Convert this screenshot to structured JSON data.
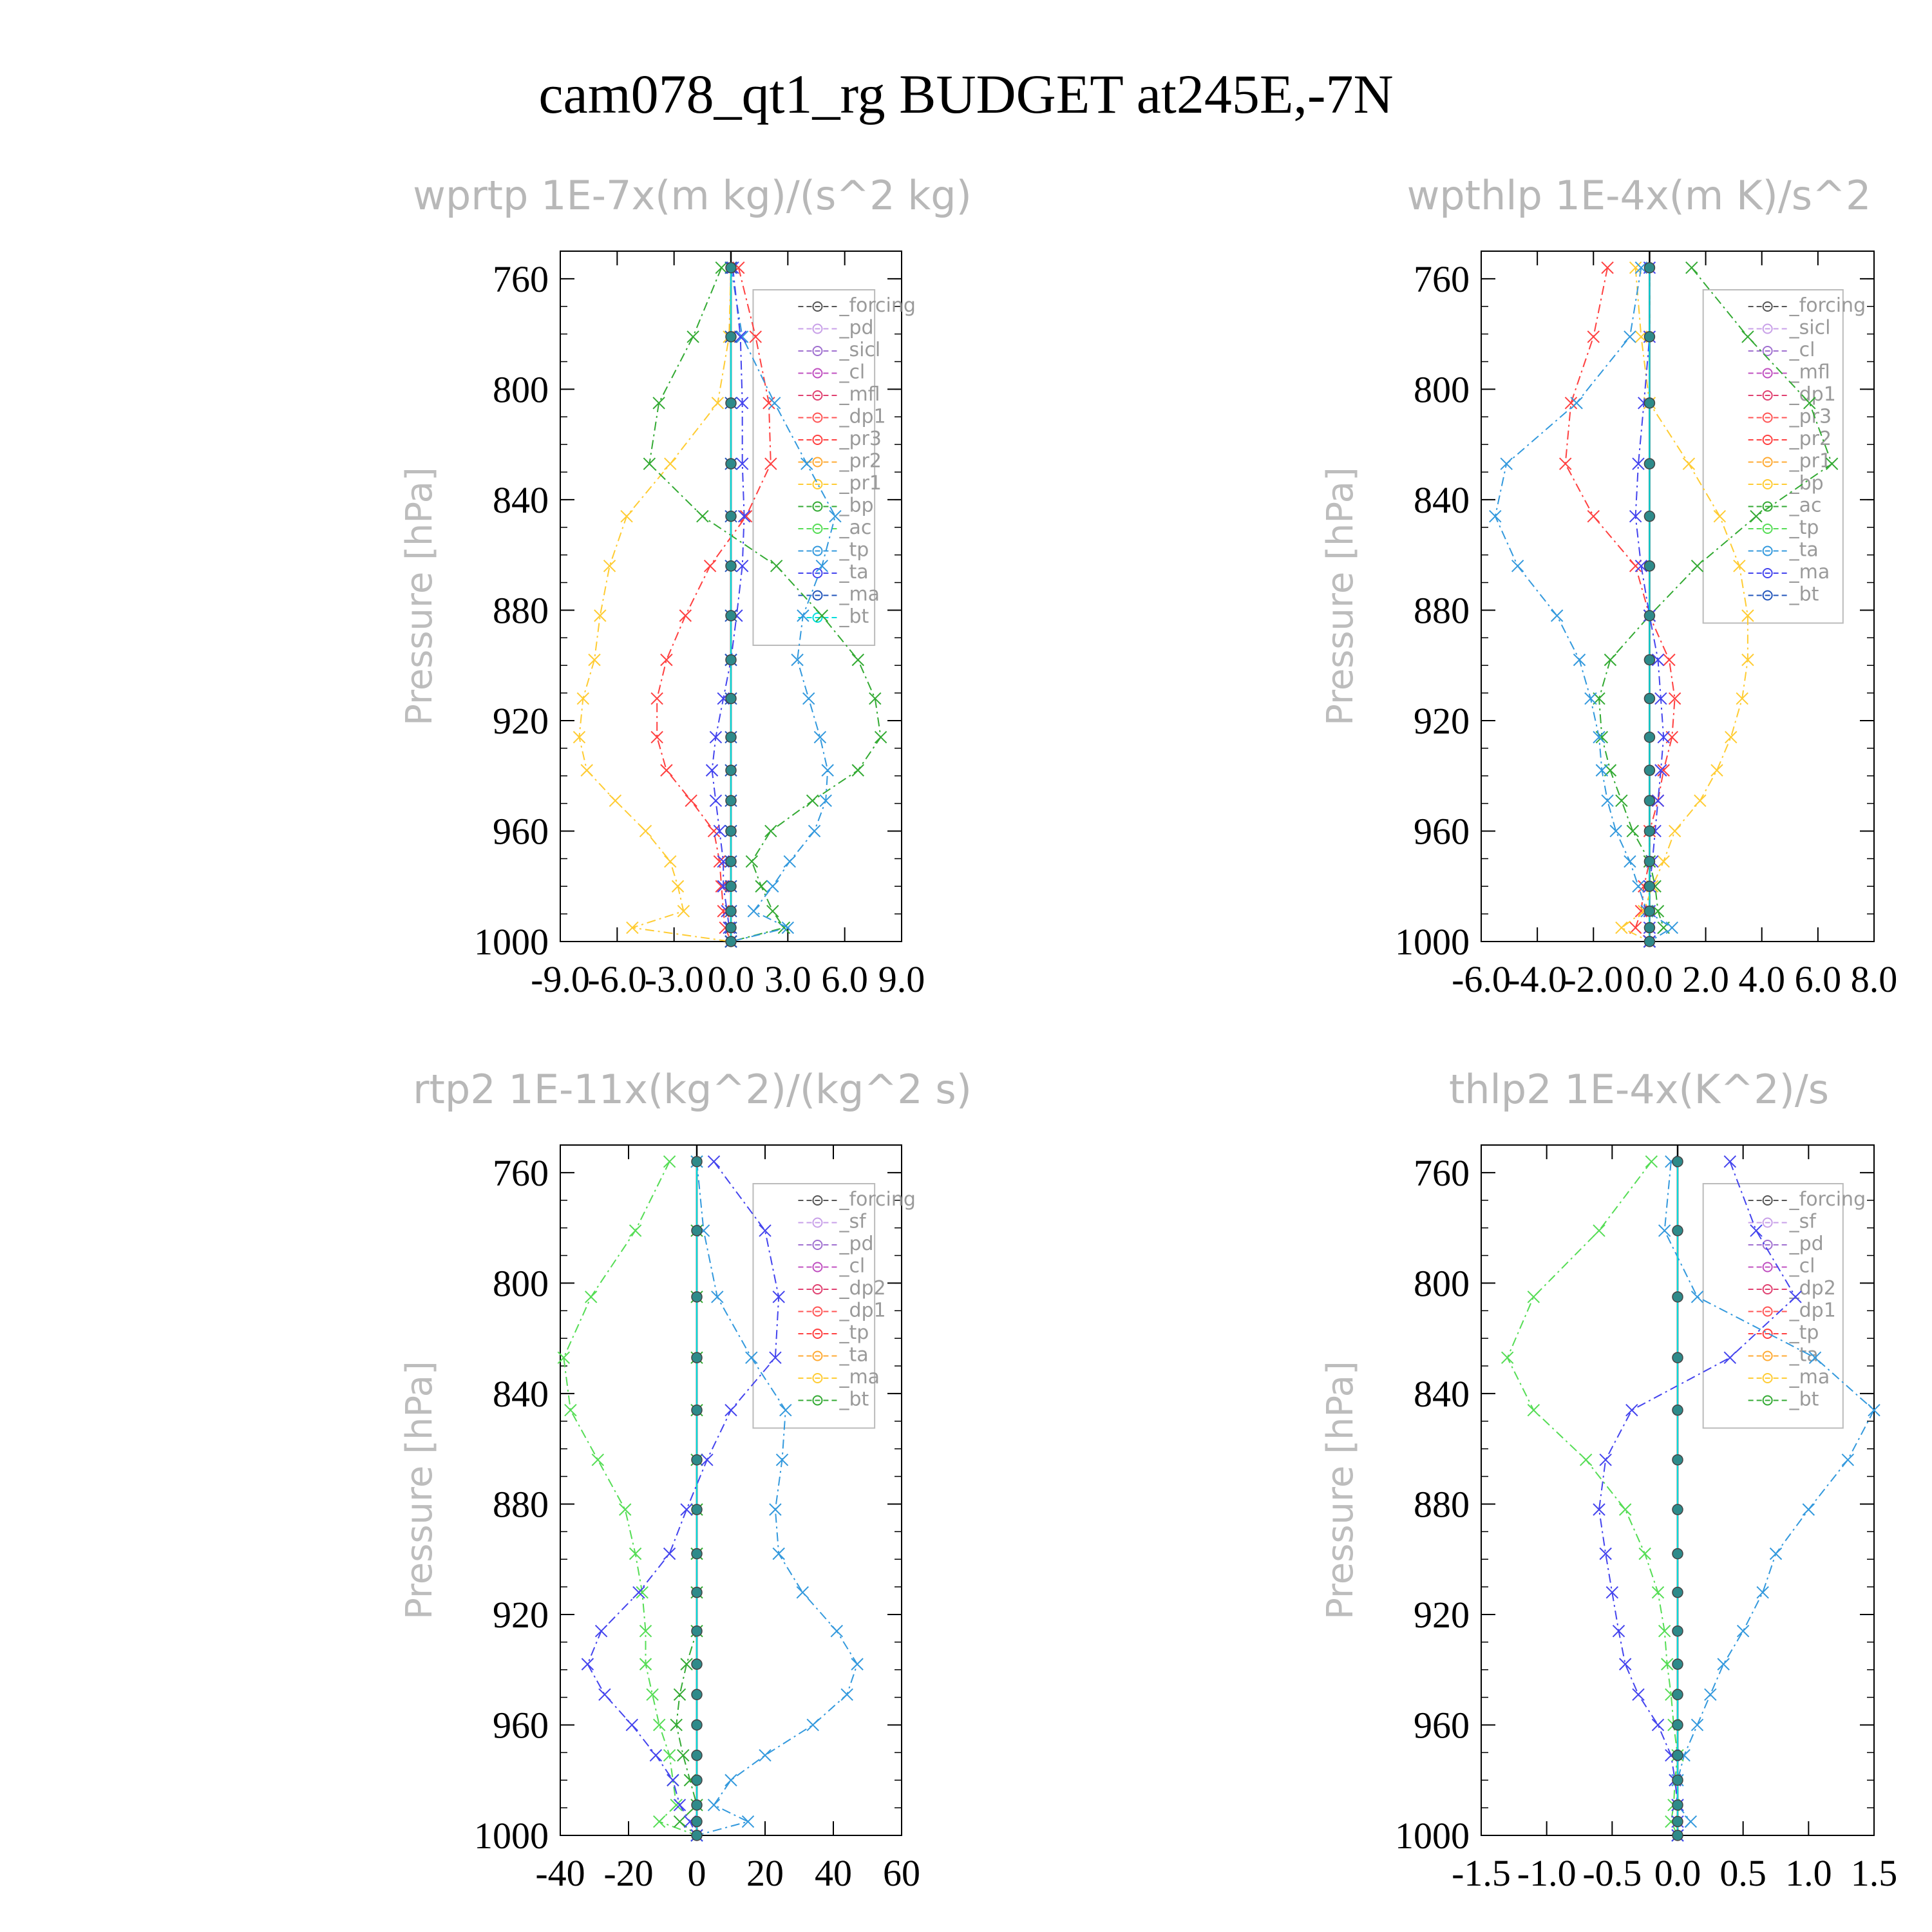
{
  "title": "cam078_qt1_rg  BUDGET at245E,-7N",
  "chart_data": [
    {
      "type": "line",
      "title": "wprtp  1E-7x(m kg)/(s^2 kg)",
      "ylabel": "Pressure [hPa]",
      "xlim": [
        -9,
        9
      ],
      "xticks": [
        "-9.0",
        "-6.0",
        "-3.0",
        "0.0",
        "3.0",
        "6.0",
        "9.0"
      ],
      "ylim": [
        750,
        1000
      ],
      "yticks": [
        "760",
        "800",
        "840",
        "880",
        "920",
        "960",
        "1000"
      ],
      "levels": [
        756,
        781,
        805,
        827,
        846,
        864,
        882,
        898,
        912,
        926,
        938,
        949,
        960,
        971,
        980,
        989,
        995,
        1000
      ],
      "legend": [
        "_forcing",
        "_pd",
        "_sicl",
        "_cl",
        "_mfl",
        "_dp1",
        "_pr3",
        "_pr2",
        "_pr1",
        "_bp",
        "_ac",
        "_tp",
        "_ta",
        "_ma",
        "_bt"
      ],
      "series": [
        {
          "name": "_pr3",
          "color": "#ff4040",
          "values": [
            0.4,
            1.3,
            2.0,
            2.1,
            0.8,
            -1.1,
            -2.4,
            -3.4,
            -3.9,
            -3.9,
            -3.4,
            -2.1,
            -0.9,
            -0.6,
            -0.5,
            -0.4,
            -0.3,
            0
          ]
        },
        {
          "name": "_pr1",
          "color": "#ffcc33",
          "values": [
            0.0,
            -0.1,
            -0.7,
            -3.2,
            -5.5,
            -6.4,
            -6.9,
            -7.2,
            -7.8,
            -8.0,
            -7.6,
            -6.1,
            -4.5,
            -3.2,
            -2.8,
            -2.5,
            -5.2,
            0
          ]
        },
        {
          "name": "_bp",
          "color": "#33aa33",
          "values": [
            -0.5,
            -2.0,
            -3.8,
            -4.3,
            -1.5,
            2.4,
            4.8,
            6.7,
            7.6,
            7.9,
            6.7,
            4.3,
            2.1,
            1.1,
            1.6,
            2.2,
            2.8,
            0
          ]
        },
        {
          "name": "_tp",
          "color": "#3399dd",
          "values": [
            0.0,
            0.6,
            2.3,
            4.0,
            5.5,
            4.8,
            3.8,
            3.5,
            4.1,
            4.7,
            5.1,
            5.0,
            4.4,
            3.1,
            2.2,
            1.2,
            3.0,
            0
          ]
        },
        {
          "name": "_ta",
          "color": "#4444ee",
          "values": [
            0.1,
            0.5,
            0.6,
            0.6,
            0.7,
            0.6,
            0.3,
            0.0,
            -0.4,
            -0.8,
            -1.0,
            -0.8,
            -0.6,
            -0.4,
            -0.4,
            -0.2,
            -0.1,
            0
          ]
        },
        {
          "name": "_ma",
          "color": "#2255bb",
          "values": [
            0.0,
            0.0,
            0.0,
            0.0,
            0.0,
            0.0,
            0.0,
            0.0,
            0.0,
            0.0,
            0.0,
            0.0,
            0.0,
            0.0,
            0.0,
            0.0,
            0.0,
            0
          ]
        },
        {
          "name": "_bt",
          "color": "#00dddd",
          "values": [
            0.0,
            0.0,
            0.0,
            0.0,
            0.0,
            0.0,
            0.0,
            0.0,
            0.0,
            0.0,
            0.0,
            0.0,
            0.0,
            0.0,
            0.0,
            0.0,
            0.0,
            0
          ]
        }
      ]
    },
    {
      "type": "line",
      "title": "wpthlp  1E-4x(m K)/s^2",
      "ylabel": "Pressure [hPa]",
      "xlim": [
        -6,
        8
      ],
      "xticks": [
        "-6.0",
        "-4.0",
        "-2.0",
        "0.0",
        "2.0",
        "4.0",
        "6.0",
        "8.0"
      ],
      "ylim": [
        750,
        1000
      ],
      "yticks": [
        "760",
        "800",
        "840",
        "880",
        "920",
        "960",
        "1000"
      ],
      "levels": [
        756,
        781,
        805,
        827,
        846,
        864,
        882,
        898,
        912,
        926,
        938,
        949,
        960,
        971,
        980,
        989,
        995,
        1000
      ],
      "legend": [
        "_forcing",
        "_sicl",
        "_cl",
        "_mfl",
        "_dp1",
        "_pr3",
        "_pr2",
        "_pr1",
        "_bp",
        "_ac",
        "_tp",
        "_ta",
        "_ma",
        "_bt"
      ],
      "series": [
        {
          "name": "_pr3",
          "color": "#ff4040",
          "values": [
            -1.5,
            -2.0,
            -2.8,
            -3.0,
            -2.0,
            -0.5,
            0.0,
            0.7,
            0.9,
            0.8,
            0.5,
            0.3,
            0.0,
            0.0,
            -0.2,
            -0.3,
            -0.5,
            0
          ]
        },
        {
          "name": "_pr1",
          "color": "#ffcc33",
          "values": [
            -0.5,
            -0.3,
            0.0,
            1.4,
            2.5,
            3.2,
            3.5,
            3.5,
            3.3,
            2.9,
            2.4,
            1.8,
            0.9,
            0.5,
            0.1,
            -0.2,
            -1.0,
            0
          ]
        },
        {
          "name": "_bp",
          "color": "#33aa33",
          "values": [
            1.5,
            3.5,
            5.7,
            6.5,
            3.8,
            1.7,
            0.0,
            -1.4,
            -1.8,
            -1.7,
            -1.4,
            -1.0,
            -0.6,
            0.0,
            0.2,
            0.3,
            0.5,
            0
          ]
        },
        {
          "name": "_tp",
          "color": "#3399dd",
          "values": [
            -0.3,
            -0.7,
            -2.6,
            -5.1,
            -5.5,
            -4.7,
            -3.3,
            -2.5,
            -2.1,
            -1.8,
            -1.7,
            -1.5,
            -1.2,
            -0.7,
            -0.4,
            -0.1,
            0.8,
            0
          ]
        },
        {
          "name": "_ta",
          "color": "#4444ee",
          "values": [
            0.0,
            0.0,
            -0.2,
            -0.4,
            -0.5,
            -0.3,
            0.0,
            0.3,
            0.4,
            0.5,
            0.4,
            0.3,
            0.2,
            0.1,
            0.0,
            0.0,
            0.0,
            0
          ]
        },
        {
          "name": "_bt",
          "color": "#00dddd",
          "values": [
            0.0,
            0.0,
            0.0,
            0.0,
            0.0,
            0.0,
            0.0,
            0.0,
            0.0,
            0.0,
            0.0,
            0.0,
            0.0,
            0.0,
            0.0,
            0.0,
            0.0,
            0
          ]
        }
      ]
    },
    {
      "type": "line",
      "title": "rtp2  1E-11x(kg^2)/(kg^2 s)",
      "ylabel": "Pressure [hPa]",
      "xlim": [
        -40,
        60
      ],
      "xticks": [
        "-40",
        "-20",
        "0",
        "20",
        "40",
        "60"
      ],
      "ylim": [
        750,
        1000
      ],
      "yticks": [
        "760",
        "800",
        "840",
        "880",
        "920",
        "960",
        "1000"
      ],
      "levels": [
        756,
        781,
        805,
        827,
        846,
        864,
        882,
        898,
        912,
        926,
        938,
        949,
        960,
        971,
        980,
        989,
        995,
        1000
      ],
      "legend": [
        "_forcing",
        "_sf",
        "_pd",
        "_cl",
        "_dp2",
        "_dp1",
        "_tp",
        "_ta",
        "_ma",
        "_bt"
      ],
      "series": [
        {
          "name": "_dp1",
          "color": "#55dd55",
          "values": [
            -8,
            -18,
            -31,
            -39,
            -37,
            -29,
            -21,
            -18,
            -16,
            -15,
            -15,
            -13,
            -11,
            -8,
            -7,
            -6,
            -11,
            0
          ]
        },
        {
          "name": "_dp2",
          "color": "#33aa33",
          "values": [
            0,
            0,
            0,
            0,
            0,
            0,
            0,
            0,
            0,
            0,
            -3,
            -5,
            -6,
            -4,
            -2,
            0,
            -5,
            0
          ]
        },
        {
          "name": "_tp",
          "color": "#3399dd",
          "values": [
            0,
            2,
            6,
            16,
            26,
            25,
            23,
            24,
            31,
            41,
            47,
            44,
            34,
            20,
            10,
            5,
            15,
            0
          ]
        },
        {
          "name": "_ta",
          "color": "#4444ee",
          "values": [
            5,
            20,
            24,
            23,
            10,
            3,
            -3,
            -8,
            -17,
            -28,
            -32,
            -27,
            -19,
            -12,
            -7,
            -5,
            -2,
            0
          ]
        },
        {
          "name": "_bt",
          "color": "#00dddd",
          "values": [
            0,
            0,
            0,
            0,
            0,
            0,
            0,
            0,
            0,
            0,
            0,
            0,
            0,
            0,
            0,
            0,
            0,
            0
          ]
        }
      ]
    },
    {
      "type": "line",
      "title": "thlp2  1E-4x(K^2)/s",
      "ylabel": "Pressure [hPa]",
      "xlim": [
        -1.5,
        1.5
      ],
      "xticks": [
        "-1.5",
        "-1.0",
        "-0.5",
        "0.0",
        "0.5",
        "1.0",
        "1.5"
      ],
      "ylim": [
        750,
        1000
      ],
      "yticks": [
        "760",
        "800",
        "840",
        "880",
        "920",
        "960",
        "1000"
      ],
      "levels": [
        756,
        781,
        805,
        827,
        846,
        864,
        882,
        898,
        912,
        926,
        938,
        949,
        960,
        971,
        980,
        989,
        995,
        1000
      ],
      "legend": [
        "_forcing",
        "_sf",
        "_pd",
        "_cl",
        "_dp2",
        "_dp1",
        "_tp",
        "_ta",
        "_ma",
        "_bt"
      ],
      "series": [
        {
          "name": "_dp1",
          "color": "#55dd55",
          "values": [
            -0.2,
            -0.6,
            -1.1,
            -1.3,
            -1.1,
            -0.7,
            -0.4,
            -0.25,
            -0.15,
            -0.1,
            -0.08,
            -0.05,
            -0.03,
            0.0,
            -0.02,
            -0.03,
            -0.05,
            0
          ]
        },
        {
          "name": "_tp",
          "color": "#3399dd",
          "values": [
            -0.05,
            -0.1,
            0.15,
            1.05,
            1.5,
            1.3,
            1.0,
            0.75,
            0.65,
            0.5,
            0.35,
            0.25,
            0.15,
            0.05,
            0.0,
            0.0,
            0.1,
            0
          ]
        },
        {
          "name": "_ta",
          "color": "#4444ee",
          "values": [
            0.4,
            0.6,
            0.9,
            0.4,
            -0.35,
            -0.55,
            -0.6,
            -0.55,
            -0.5,
            -0.45,
            -0.4,
            -0.3,
            -0.15,
            -0.05,
            -0.02,
            0.0,
            0.0,
            0
          ]
        },
        {
          "name": "_bt",
          "color": "#00dddd",
          "values": [
            0.0,
            0.0,
            0.0,
            0.0,
            0.0,
            0.0,
            0.0,
            0.0,
            0.0,
            0.0,
            0.0,
            0.0,
            0.0,
            0.0,
            0.0,
            0.0,
            0.0,
            0
          ]
        }
      ]
    }
  ]
}
